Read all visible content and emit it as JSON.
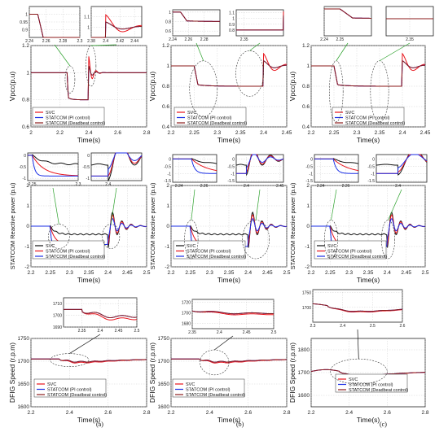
{
  "colors": {
    "svc": "#e8131b",
    "pi": "#1a2ee6",
    "deadbeat": "#8b1a1a",
    "black": "#111111",
    "arrow": "#2aa02a"
  },
  "subfig_labels": [
    "(a)",
    "(b)",
    "(c)"
  ],
  "chart_data": [
    {
      "type": "line",
      "id": "vpcc-a",
      "ylabel": "Vpcc(p.u)",
      "xlabel": "Time(s)",
      "xlim": [
        2,
        2.8
      ],
      "ylim": [
        0.6,
        1.2
      ],
      "xticks": [
        "2",
        "2.2",
        "2.4",
        "2.6",
        "2.8"
      ],
      "yticks": [
        "0.6",
        "0.8",
        "1",
        "1.2"
      ],
      "legend": [
        "SVC",
        "STATCOM (PI control)",
        "STATCOM (Deadbeat control)"
      ],
      "grid": true,
      "insets": [
        {
          "xlim": [
            2.24,
            2.3
          ],
          "ylim": [
            0.85,
            1.05
          ],
          "xticks": [
            "2.24",
            "2.26",
            "2.28",
            "2.3"
          ],
          "yticks": [
            "0.9",
            "0.95",
            "1"
          ]
        },
        {
          "xlim": [
            2.38,
            2.45
          ],
          "ylim": [
            0.9,
            1.2
          ],
          "xticks": [
            "2.38",
            "2.4",
            "2.42",
            "2.44"
          ],
          "yticks": [
            "1",
            "1.1"
          ]
        }
      ]
    },
    {
      "type": "line",
      "id": "vpcc-b",
      "ylabel": "Vpcc(p.u)",
      "xlabel": "Time(s)",
      "xlim": [
        2.2,
        2.45
      ],
      "ylim": [
        0.4,
        1.2
      ],
      "xticks": [
        "2.2",
        "2.25",
        "2.3",
        "2.35",
        "2.4",
        "2.45"
      ],
      "yticks": [
        "0.4",
        "0.6",
        "0.8",
        "1",
        "1.2"
      ],
      "legend": [
        "SVC",
        "STATCOM (PI control)",
        "STATCOM (Deadbeat control)"
      ],
      "grid": true,
      "insets": [
        {
          "xlim": [
            2.24,
            2.3
          ],
          "ylim": [
            0.5,
            1.05
          ],
          "xticks": [
            "2.24",
            "2.26",
            "2.28"
          ],
          "yticks": [
            "0.6",
            "0.8",
            "1"
          ]
        },
        {
          "xlim": [
            2.34,
            2.4
          ],
          "ylim": [
            0.7,
            1.15
          ],
          "xticks": [
            "2.35"
          ],
          "yticks": [
            "0.8",
            "0.9",
            "1",
            "1.1"
          ]
        }
      ]
    },
    {
      "type": "line",
      "id": "vpcc-c",
      "ylabel": "Vpcc(p.u)",
      "xlabel": "Time(s)",
      "xlim": [
        2.2,
        2.45
      ],
      "ylim": [
        0.4,
        1.2
      ],
      "xticks": [
        "2.2",
        "2.25",
        "2.3",
        "2.35",
        "2.4",
        "2.45"
      ],
      "yticks": [
        "0.4",
        "0.6",
        "0.8",
        "1",
        "1.2"
      ],
      "legend": [
        "SVC",
        "STATCOM (PI control)",
        "STATCOM (Deadbeat control)"
      ],
      "grid": true,
      "insets": [
        {
          "xlim": [
            2.24,
            2.27
          ],
          "ylim": [
            0.45,
            1.05
          ],
          "xticks": [
            "2.24",
            "2.25"
          ],
          "yticks": []
        },
        {
          "xlim": [
            2.33,
            2.37
          ],
          "ylim": [
            0.45,
            1.05
          ],
          "xticks": [
            "2.35"
          ],
          "yticks": []
        }
      ]
    },
    {
      "type": "line",
      "id": "q-a",
      "ylabel": "STATCOM Reactive power (p.u)",
      "xlabel": "Time(s)",
      "xlim": [
        2.2,
        2.5
      ],
      "ylim": [
        -2,
        2
      ],
      "xticks": [
        "2.2",
        "2.25",
        "2.3",
        "2.35",
        "2.4",
        "2.45",
        "2.5"
      ],
      "yticks": [
        "-2",
        "-1",
        "0",
        "1",
        "2"
      ],
      "legend": [
        "SVC",
        "STATCOM (PI control)",
        "STATCOM (Deadbeat control)"
      ],
      "grid": true,
      "insets": [
        {
          "xlim": [
            2.245,
            2.3
          ],
          "ylim": [
            -1.1,
            0.1
          ],
          "xticks": [
            "2.25",
            "2.3"
          ],
          "yticks": [
            "-1",
            "-0.5",
            "0"
          ]
        },
        {
          "xlim": [
            2.385,
            2.43
          ],
          "ylim": [
            -1.1,
            0.1
          ],
          "xticks": [
            "2.4"
          ],
          "yticks": [
            "-1",
            "-0.5",
            "0"
          ]
        }
      ]
    },
    {
      "type": "line",
      "id": "q-b",
      "ylabel": "STATCOM Reactive power (p.u)",
      "xlabel": "Time(s)",
      "xlim": [
        2.2,
        2.5
      ],
      "ylim": [
        -2,
        2
      ],
      "xticks": [
        "2.2",
        "2.25",
        "2.3",
        "2.35",
        "2.4",
        "2.45",
        "2.5"
      ],
      "yticks": [
        "-2",
        "-1",
        "0",
        "1",
        "2"
      ],
      "legend": [
        "SVC",
        "STATCOM (PI control)",
        "STATCOM (Deadbeat control)"
      ],
      "grid": true,
      "insets": [
        {
          "xlim": [
            2.235,
            2.27
          ],
          "ylim": [
            -1.6,
            0.3
          ],
          "xticks": [
            "2.24",
            "2.26"
          ],
          "yticks": [
            "-1.5",
            "-1",
            "-0.5",
            "0"
          ]
        },
        {
          "xlim": [
            2.385,
            2.455
          ],
          "ylim": [
            -1.6,
            0.3
          ],
          "xticks": [
            "2.4",
            "2.45"
          ],
          "yticks": [
            "-1.5",
            "-1",
            "-0.5",
            "0"
          ]
        }
      ]
    },
    {
      "type": "line",
      "id": "q-c",
      "ylabel": "STATCOM Reactive power (p.u)",
      "xlabel": "Time(s)",
      "xlim": [
        2.2,
        2.5
      ],
      "ylim": [
        -2,
        2
      ],
      "xticks": [
        "2.2",
        "2.25",
        "2.3",
        "2.35",
        "2.4",
        "2.45",
        "2.5"
      ],
      "yticks": [
        "-2",
        "-1",
        "0",
        "1",
        "2"
      ],
      "legend": [
        "SVC",
        "STATCOM (PI control)",
        "STATCOM (Deadbeat control)"
      ],
      "grid": true,
      "insets": [
        {
          "xlim": [
            2.235,
            2.27
          ],
          "ylim": [
            -1.6,
            0.3
          ],
          "xticks": [
            "2.24",
            "2.26"
          ],
          "yticks": [
            "-1.5",
            "-1",
            "-0.5",
            "0"
          ]
        },
        {
          "xlim": [
            2.385,
            2.42
          ],
          "ylim": [
            -1.6,
            0.3
          ],
          "xticks": [
            "2.4"
          ],
          "yticks": [
            "-1.5",
            "-1",
            "-0.5",
            "0"
          ]
        }
      ]
    },
    {
      "type": "line",
      "id": "speed-a",
      "ylabel": "DFIG Speed (r.p.m)",
      "xlabel": "Time(s)",
      "xlim": [
        2.2,
        2.8
      ],
      "ylim": [
        1600,
        1750
      ],
      "xticks": [
        "2.2",
        "2.4",
        "2.6",
        "2.8"
      ],
      "yticks": [
        "1600",
        "1650",
        "1700",
        "1750"
      ],
      "legend": [
        "SVC",
        "STATCOM (PI control)",
        "STATCOM (Deadbeat control)"
      ],
      "grid": true,
      "insets": [
        {
          "xlim": [
            2.3,
            2.5
          ],
          "ylim": [
            1690,
            1715
          ],
          "xticks": [
            "2.35",
            "2.4",
            "2.45",
            "2.5"
          ],
          "yticks": [
            "1690",
            "1700",
            "1710"
          ]
        }
      ]
    },
    {
      "type": "line",
      "id": "speed-b",
      "ylabel": "DFIG Speed (r.p.m)",
      "xlabel": "Time(s)",
      "xlim": [
        2.2,
        2.8
      ],
      "ylim": [
        1600,
        1750
      ],
      "xticks": [
        "2.2",
        "2.4",
        "2.6",
        "2.8"
      ],
      "yticks": [
        "1600",
        "1650",
        "1700",
        "1750"
      ],
      "legend": [
        "SVC",
        "STATCOM (PI control)",
        "STATCOM (Deadbeat control)"
      ],
      "grid": true,
      "insets": [
        {
          "xlim": [
            2.35,
            2.5
          ],
          "ylim": [
            1670,
            1725
          ],
          "xticks": [
            "2.35",
            "2.4",
            "2.45",
            "2.5"
          ],
          "yticks": [
            "1680",
            "1700",
            "1720"
          ]
        }
      ]
    },
    {
      "type": "line",
      "id": "speed-c",
      "ylabel": "DFIG Speed (r.p.m)",
      "xlabel": "Time(s)",
      "xlim": [
        2.2,
        2.8
      ],
      "ylim": [
        1550,
        1850
      ],
      "xticks": [
        "2.2",
        "2.4",
        "2.6",
        "2.8"
      ],
      "yticks": [
        "1600",
        "1700",
        "1800"
      ],
      "legend": [
        "SVC",
        "STATCOM (PI control)",
        "STATCOM (Deadbeat control)"
      ],
      "grid": true,
      "insets": [
        {
          "xlim": [
            2.3,
            2.6
          ],
          "ylim": [
            1650,
            1760
          ],
          "xticks": [
            "2.3",
            "2.4",
            "2.5",
            "2.6"
          ],
          "yticks": [
            "1700",
            "1750"
          ]
        }
      ]
    }
  ]
}
